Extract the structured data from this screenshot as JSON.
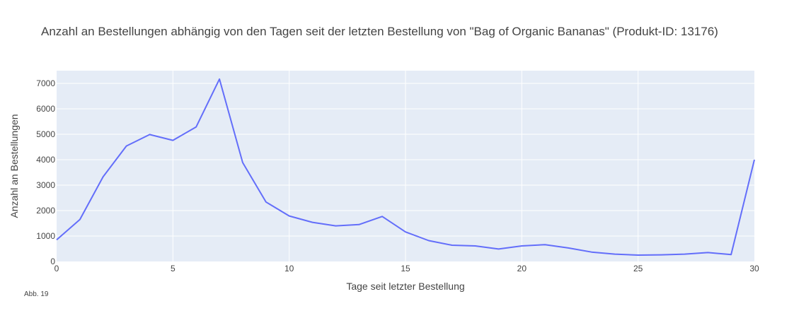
{
  "chart_data": {
    "type": "line",
    "title": "Anzahl an Bestellungen abhängig von den Tagen seit der letzten Bestellung von \"Bag of Organic Bananas\" (Produkt-ID: 13176)",
    "xlabel": "Tage seit letzter Bestellung",
    "ylabel": "Anzahl an Bestellungen",
    "xlim": [
      0,
      30
    ],
    "ylim": [
      0,
      7500
    ],
    "x_ticks": [
      0,
      5,
      10,
      15,
      20,
      25,
      30
    ],
    "y_ticks": [
      0,
      1000,
      2000,
      3000,
      4000,
      5000,
      6000,
      7000
    ],
    "grid": true,
    "series": [
      {
        "color": "#636efa",
        "x": [
          0,
          1,
          2,
          3,
          4,
          5,
          6,
          7,
          8,
          9,
          10,
          11,
          12,
          13,
          14,
          15,
          16,
          17,
          18,
          19,
          20,
          21,
          22,
          23,
          24,
          25,
          26,
          27,
          28,
          29,
          30
        ],
        "y": [
          850,
          1650,
          3330,
          4540,
          4990,
          4760,
          5290,
          7170,
          3890,
          2340,
          1790,
          1540,
          1400,
          1450,
          1770,
          1160,
          820,
          640,
          610,
          490,
          610,
          660,
          530,
          370,
          290,
          250,
          260,
          290,
          350,
          270,
          4000
        ]
      }
    ]
  },
  "caption": "Abb. 19",
  "colors": {
    "plot_background": "#e5ecf6",
    "gridline": "#ffffff",
    "series": "#636efa"
  }
}
